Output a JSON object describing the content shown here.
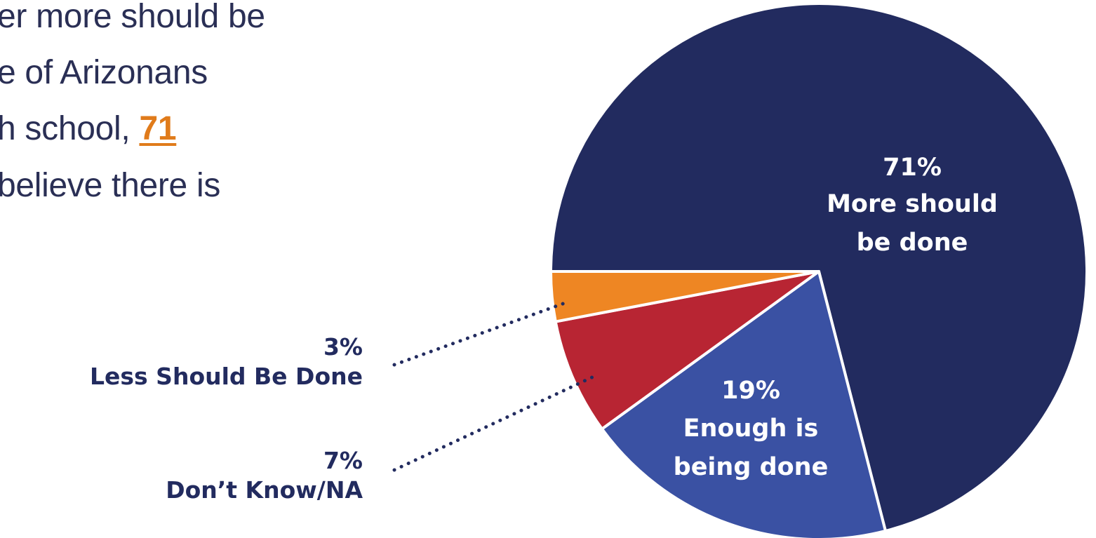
{
  "intro_text": {
    "lines": [
      "er more should be",
      "e of Arizonans",
      "h school, ",
      "believe there is"
    ],
    "highlight": "71"
  },
  "chart_data": {
    "type": "pie",
    "title": "",
    "slices": [
      {
        "label": "More should be done",
        "value": 71,
        "display": "71%",
        "color": "#222b5f"
      },
      {
        "label": "Enough is being done",
        "value": 19,
        "display": "19%",
        "color": "#3a51a3"
      },
      {
        "label": "Don’t Know/NA",
        "value": 7,
        "display": "7%",
        "color": "#b82533"
      },
      {
        "label": "Less Should Be Done",
        "value": 3,
        "display": "3%",
        "color": "#ee8623"
      }
    ],
    "inside_labels": {
      "more": [
        "71%",
        "More should",
        "be done"
      ],
      "enough": [
        "19%",
        "Enough is",
        "being done"
      ]
    },
    "callouts": {
      "less": {
        "value": "3%",
        "label": "Less Should Be Done"
      },
      "dont_know": {
        "value": "7%",
        "label": "Don’t Know/NA"
      }
    }
  }
}
